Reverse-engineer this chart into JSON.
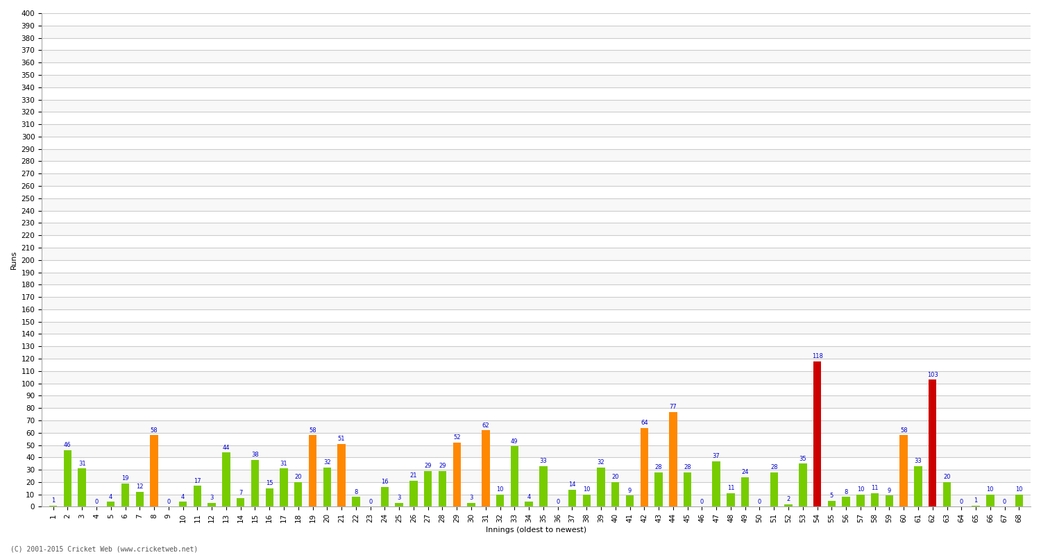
{
  "innings": [
    1,
    2,
    3,
    4,
    5,
    6,
    7,
    8,
    9,
    10,
    11,
    12,
    13,
    14,
    15,
    16,
    17,
    18,
    19,
    20,
    21,
    22,
    23,
    24,
    25,
    26,
    27,
    28,
    29,
    30,
    31,
    32,
    33,
    34,
    35,
    36,
    37,
    38,
    39,
    40,
    41,
    42,
    43,
    44,
    45,
    46,
    47,
    48,
    49,
    50,
    51,
    52,
    53,
    54,
    55,
    56,
    57,
    58,
    59,
    60,
    61,
    62,
    63,
    64,
    65,
    66,
    67,
    68
  ],
  "runs": [
    1,
    46,
    31,
    0,
    4,
    19,
    12,
    58,
    0,
    4,
    17,
    3,
    44,
    7,
    38,
    15,
    31,
    20,
    58,
    32,
    51,
    8,
    0,
    16,
    3,
    21,
    29,
    29,
    52,
    3,
    62,
    10,
    49,
    4,
    33,
    0,
    14,
    10,
    32,
    20,
    9,
    64,
    28,
    77,
    28,
    0,
    37,
    11,
    24,
    0,
    28,
    2,
    35,
    118,
    5,
    8,
    10,
    11,
    9,
    58,
    33,
    103,
    20,
    0,
    1,
    10,
    0,
    10
  ],
  "ylabel": "Runs",
  "xlabel": "Innings (oldest to newest)",
  "ytick_step": 10,
  "ymax": 400,
  "ymin": 0,
  "green_color": "#77cc00",
  "orange_color": "#ff8800",
  "red_color": "#cc0000",
  "label_color": "#0000cc",
  "bg_color": "#ffffff",
  "grid_color": "#cccccc",
  "century_threshold": 100,
  "fifty_threshold": 50,
  "label_fontsize": 6.0,
  "tick_fontsize": 7.5,
  "ylabel_fontsize": 8,
  "xlabel_fontsize": 8,
  "footer_text": "(C) 2001-2015 Cricket Web (www.cricketweb.net)"
}
